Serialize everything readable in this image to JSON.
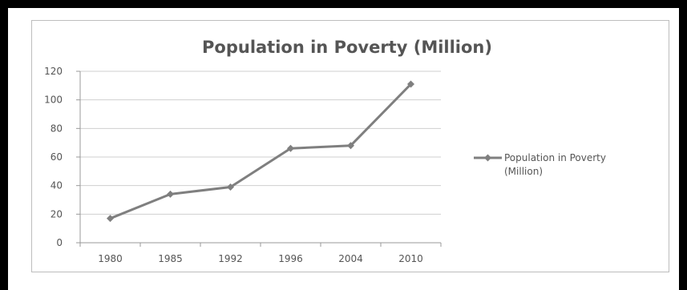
{
  "chart_data": {
    "type": "line",
    "title": "Population in Poverty (Million)",
    "categories": [
      "1980",
      "1985",
      "1992",
      "1996",
      "2004",
      "2010"
    ],
    "series": [
      {
        "name": "Population in Poverty (Million)",
        "values": [
          17,
          34,
          39,
          66,
          68,
          111
        ]
      }
    ],
    "ylim": [
      0,
      120
    ],
    "yticks": [
      0,
      20,
      40,
      60,
      80,
      100,
      120
    ],
    "grid": true,
    "legend": "right",
    "legend_lines": [
      "Population in Poverty",
      "(Million)"
    ],
    "colors": {
      "line": "#7f7f7f",
      "grid": "#cfcfcf",
      "axis": "#999999"
    }
  }
}
